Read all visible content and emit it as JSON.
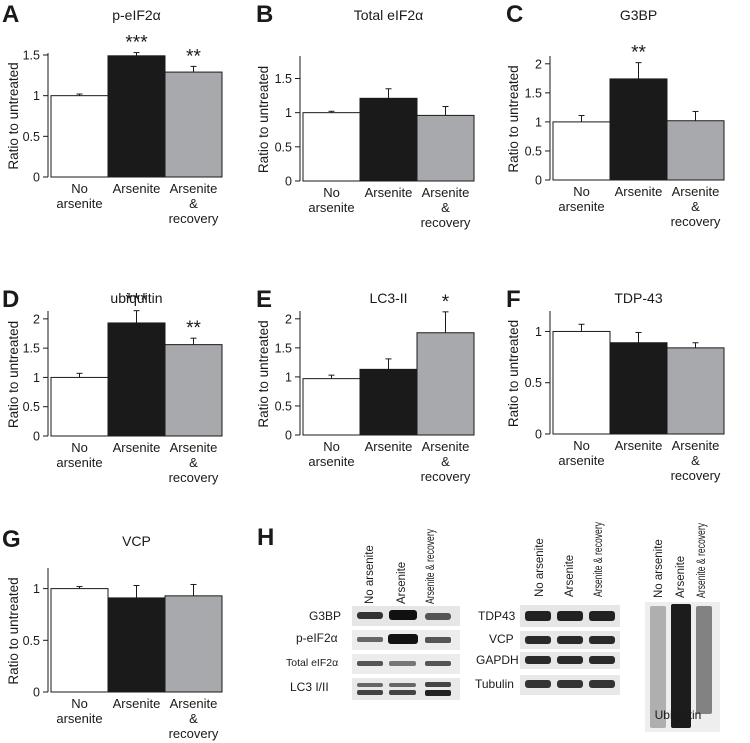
{
  "colors": {
    "no_arsenite": "#ffffff",
    "arsenite": "#1a1a1a",
    "recovery": "#a7a9ac",
    "axis": "#1a1a1a"
  },
  "categories": [
    "No arsenite",
    "Arsenite",
    "Arsenite & recovery"
  ],
  "category_label_lines": [
    [
      "No",
      "arsenite"
    ],
    [
      "Arsenite"
    ],
    [
      "Arsenite",
      "&",
      "recovery"
    ]
  ],
  "chart_data": [
    {
      "type": "bar",
      "panel_letter": "A",
      "title": "p-eIF2α",
      "ylabel": "Ratio to untreated",
      "ylim": [
        0,
        1.5
      ],
      "yticks": [
        "0",
        "0.5",
        "1",
        "1.5"
      ],
      "ytick_values": [
        0,
        0.5,
        1,
        1.5
      ],
      "values": [
        1.0,
        1.49,
        1.29
      ],
      "errors": [
        0.02,
        0.04,
        0.07
      ],
      "significance": [
        "",
        "***",
        "**"
      ]
    },
    {
      "type": "bar",
      "panel_letter": "B",
      "title": "Total eIF2α",
      "ylabel": "Ratio to untreated",
      "ylim": [
        0,
        1.8
      ],
      "yticks": [
        "0",
        "0.5",
        "1",
        "1.5"
      ],
      "ytick_values": [
        0,
        0.5,
        1,
        1.5
      ],
      "values": [
        1.0,
        1.21,
        0.96
      ],
      "errors": [
        0.02,
        0.14,
        0.13
      ],
      "significance": [
        "",
        "",
        ""
      ]
    },
    {
      "type": "bar",
      "panel_letter": "C",
      "title": "G3BP",
      "ylabel": "Ratio to untreated",
      "ylim": [
        0,
        2.1
      ],
      "yticks": [
        "0",
        "0.5",
        "1",
        "1.5",
        "2"
      ],
      "ytick_values": [
        0,
        0.5,
        1,
        1.5,
        2
      ],
      "values": [
        1.0,
        1.74,
        1.02
      ],
      "errors": [
        0.11,
        0.28,
        0.16
      ],
      "significance": [
        "",
        "**",
        ""
      ]
    },
    {
      "type": "bar",
      "panel_letter": "D",
      "title": "ubiquitin",
      "ylabel": "Ratio to untreated",
      "ylim": [
        0,
        2.1
      ],
      "yticks": [
        "0",
        "0.5",
        "1",
        "1.5",
        "2"
      ],
      "ytick_values": [
        0,
        0.5,
        1,
        1.5,
        2
      ],
      "values": [
        1.0,
        1.93,
        1.56
      ],
      "errors": [
        0.07,
        0.21,
        0.11
      ],
      "significance": [
        "",
        "***",
        "**"
      ]
    },
    {
      "type": "bar",
      "panel_letter": "E",
      "title": "LC3-II",
      "ylabel": "Ratio to untreated",
      "ylim": [
        0,
        2.1
      ],
      "yticks": [
        "0",
        "0.5",
        "1",
        "1.5",
        "2"
      ],
      "ytick_values": [
        0,
        0.5,
        1,
        1.5,
        2
      ],
      "values": [
        0.97,
        1.13,
        1.76
      ],
      "errors": [
        0.06,
        0.18,
        0.36
      ],
      "significance": [
        "",
        "",
        "*"
      ]
    },
    {
      "type": "bar",
      "panel_letter": "F",
      "title": "TDP-43",
      "ylabel": "Ratio to untreated",
      "ylim": [
        0,
        1.18
      ],
      "yticks": [
        "0",
        "0.5",
        "1"
      ],
      "ytick_values": [
        0,
        0.5,
        1
      ],
      "values": [
        1.0,
        0.89,
        0.84
      ],
      "errors": [
        0.07,
        0.1,
        0.05
      ],
      "significance": [
        "",
        "",
        ""
      ]
    },
    {
      "type": "bar",
      "panel_letter": "G",
      "title": "VCP",
      "ylabel": "Ratio to untreated",
      "ylim": [
        0,
        1.18
      ],
      "yticks": [
        "0",
        "0.5",
        "1"
      ],
      "ytick_values": [
        0,
        0.5,
        1
      ],
      "values": [
        1.0,
        0.91,
        0.93
      ],
      "errors": [
        0.02,
        0.12,
        0.11
      ],
      "significance": [
        "",
        "",
        ""
      ]
    }
  ],
  "blots": {
    "panel_letter": "H",
    "lane_labels": [
      "No arsenite",
      "Arsenite",
      "Arsenite & recovery"
    ],
    "group1_rows": [
      "G3BP",
      "p-eIF2α",
      "Total eIF2α",
      "LC3 I/II"
    ],
    "group2_rows": [
      "TDP43",
      "VCP",
      "GAPDH",
      "Tubulin"
    ],
    "ubiquitin_label": "Ubiquitin"
  }
}
